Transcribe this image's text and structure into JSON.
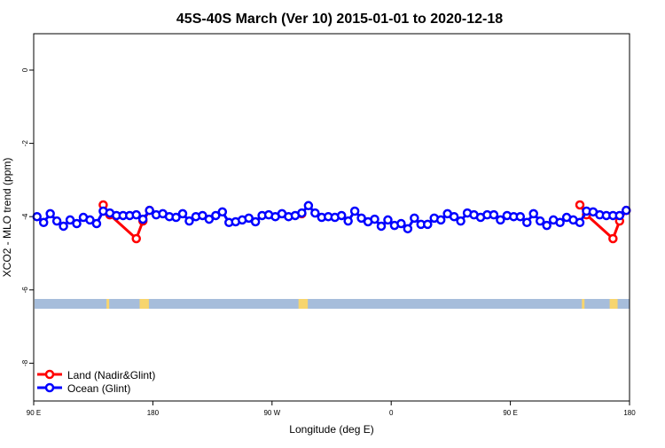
{
  "chart_data": {
    "type": "line",
    "title": "45S-40S March (Ver 10)   2015-01-01 to 2020-12-18",
    "xlabel": "Longitude (deg E)",
    "ylabel": "XCO2 - MLO trend (ppm)",
    "xlim": [
      90,
      540
    ],
    "ylim": [
      -9,
      1
    ],
    "x_ticks": [
      90,
      180,
      270,
      360,
      450,
      540
    ],
    "x_tick_labels": [
      "90 E",
      "180",
      "90 W",
      "0",
      "90 E",
      "180"
    ],
    "y_ticks": [
      0,
      -2,
      -4,
      -6,
      -8
    ],
    "y_tick_labels": [
      "0",
      "-2",
      "-4",
      "-6",
      "-8"
    ],
    "grid": false,
    "legend_position": "bottom-left",
    "series": [
      {
        "name": "Land (Nadir&Glint)",
        "color": "#ff0000",
        "x": [
          142.5,
          147.5,
          167.5,
          172.5,
          177.5,
          null,
          292.5,
          null,
          502.5,
          507.5,
          527.5,
          532.5,
          537.5
        ],
        "values": [
          -3.68,
          -3.95,
          -4.6,
          -4.12,
          -3.83,
          null,
          -3.92,
          null,
          -3.68,
          -3.95,
          -4.6,
          -4.12,
          -3.83
        ]
      },
      {
        "name": "Ocean (Glint)",
        "color": "#0000ff",
        "x0": 92.5,
        "dx": 5,
        "values": [
          -4.0,
          -4.16,
          -3.92,
          -4.12,
          -4.26,
          -4.09,
          -4.19,
          -4.02,
          -4.09,
          -4.19,
          -3.85,
          -3.9,
          -3.97,
          -3.97,
          -3.97,
          -3.95,
          -4.07,
          -3.83,
          -3.95,
          -3.92,
          -4.0,
          -4.02,
          -3.92,
          -4.12,
          -4.0,
          -3.97,
          -4.07,
          -3.97,
          -3.87,
          -4.16,
          -4.14,
          -4.09,
          -4.04,
          -4.14,
          -3.97,
          -3.95,
          -4.0,
          -3.92,
          -4.0,
          -3.97,
          -3.9,
          -3.7,
          -3.9,
          -4.02,
          -4.0,
          -4.02,
          -3.97,
          -4.12,
          -3.85,
          -4.04,
          -4.14,
          -4.07,
          -4.26,
          -4.09,
          -4.24,
          -4.19,
          -4.33,
          -4.04,
          -4.21,
          -4.21,
          -4.04,
          -4.09,
          -3.92,
          -4.0,
          -4.12,
          -3.9,
          -3.95,
          -4.02,
          -3.95,
          -3.95,
          -4.09,
          -3.97,
          -4.0,
          -4.0,
          -4.16,
          -3.92,
          -4.12,
          -4.24,
          -4.09,
          -4.16,
          -4.02,
          -4.09,
          -4.16,
          -3.85,
          -3.87,
          -3.95,
          -3.97,
          -3.97,
          -3.97,
          -3.83
        ]
      }
    ],
    "land_mask": {
      "ocean_color": "#a6bddb",
      "land_color": "#f7d56e",
      "land_lon_ranges": [
        [
          145,
          147
        ],
        [
          170,
          177
        ],
        [
          290,
          297
        ],
        [
          504,
          506
        ],
        [
          525,
          531
        ]
      ]
    }
  }
}
